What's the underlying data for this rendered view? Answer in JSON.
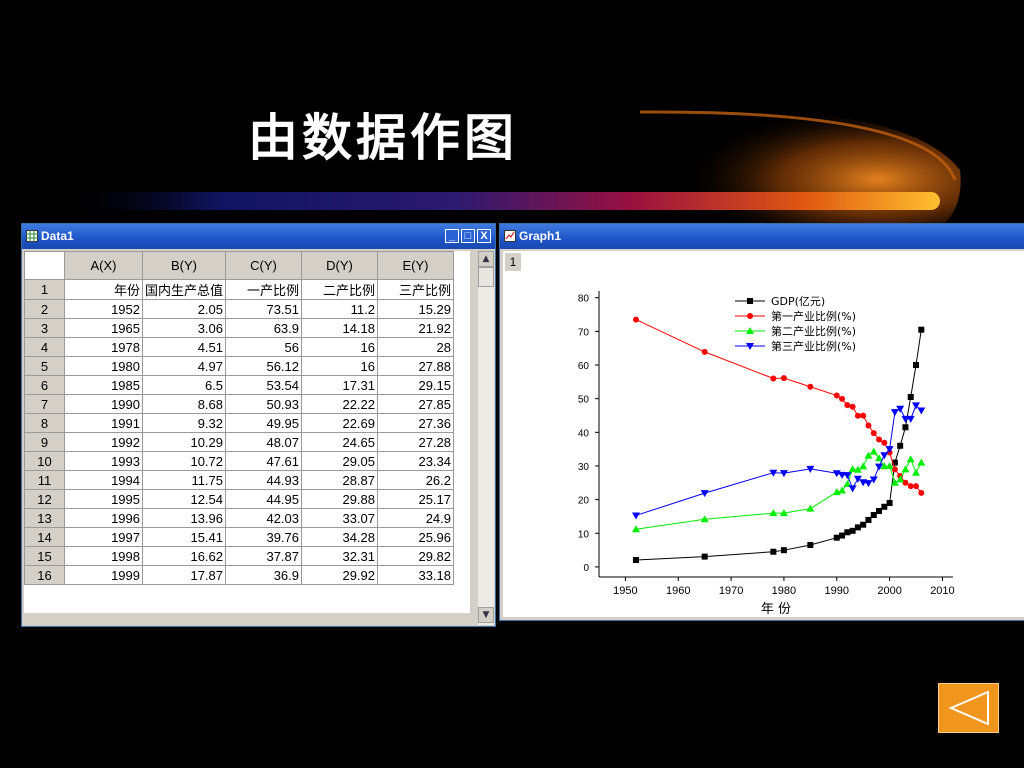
{
  "slide": {
    "title": "由数据作图",
    "accent": "#f0a020"
  },
  "data_window": {
    "title": "Data1",
    "controls": [
      "_",
      "□",
      "X"
    ],
    "columns": [
      "A(X)",
      "B(Y)",
      "C(Y)",
      "D(Y)",
      "E(Y)"
    ],
    "rows": [
      {
        "n": "1",
        "cells": [
          "年份",
          "国内生产总值",
          "一产比例",
          "二产比例",
          "三产比例"
        ]
      },
      {
        "n": "2",
        "cells": [
          "1952",
          "2.05",
          "73.51",
          "11.2",
          "15.29"
        ]
      },
      {
        "n": "3",
        "cells": [
          "1965",
          "3.06",
          "63.9",
          "14.18",
          "21.92"
        ]
      },
      {
        "n": "4",
        "cells": [
          "1978",
          "4.51",
          "56",
          "16",
          "28"
        ]
      },
      {
        "n": "5",
        "cells": [
          "1980",
          "4.97",
          "56.12",
          "16",
          "27.88"
        ]
      },
      {
        "n": "6",
        "cells": [
          "1985",
          "6.5",
          "53.54",
          "17.31",
          "29.15"
        ]
      },
      {
        "n": "7",
        "cells": [
          "1990",
          "8.68",
          "50.93",
          "22.22",
          "27.85"
        ]
      },
      {
        "n": "8",
        "cells": [
          "1991",
          "9.32",
          "49.95",
          "22.69",
          "27.36"
        ]
      },
      {
        "n": "9",
        "cells": [
          "1992",
          "10.29",
          "48.07",
          "24.65",
          "27.28"
        ]
      },
      {
        "n": "10",
        "cells": [
          "1993",
          "10.72",
          "47.61",
          "29.05",
          "23.34"
        ]
      },
      {
        "n": "11",
        "cells": [
          "1994",
          "11.75",
          "44.93",
          "28.87",
          "26.2"
        ]
      },
      {
        "n": "12",
        "cells": [
          "1995",
          "12.54",
          "44.95",
          "29.88",
          "25.17"
        ]
      },
      {
        "n": "13",
        "cells": [
          "1996",
          "13.96",
          "42.03",
          "33.07",
          "24.9"
        ]
      },
      {
        "n": "14",
        "cells": [
          "1997",
          "15.41",
          "39.76",
          "34.28",
          "25.96"
        ]
      },
      {
        "n": "15",
        "cells": [
          "1998",
          "16.62",
          "37.87",
          "32.31",
          "29.82"
        ]
      },
      {
        "n": "16",
        "cells": [
          "1999",
          "17.87",
          "36.9",
          "29.92",
          "33.18"
        ]
      }
    ]
  },
  "graph_window": {
    "title": "Graph1",
    "layer_label": "1"
  },
  "chart_data": {
    "type": "line",
    "xlabel": "年 份",
    "ylabel": "",
    "xlim": [
      1945,
      2012
    ],
    "ylim": [
      -3,
      82
    ],
    "xticks": [
      1950,
      1960,
      1970,
      1980,
      1990,
      2000,
      2010
    ],
    "yticks": [
      0,
      10,
      20,
      30,
      40,
      50,
      60,
      70,
      80
    ],
    "grid": false,
    "legend_position": "top-right",
    "series": [
      {
        "name": "GDP(亿元)",
        "color": "#000000",
        "marker": "square",
        "x": [
          1952,
          1965,
          1978,
          1980,
          1985,
          1990,
          1991,
          1992,
          1993,
          1994,
          1995,
          1996,
          1997,
          1998,
          1999,
          2000,
          2001,
          2002,
          2003,
          2004,
          2005,
          2006
        ],
        "y": [
          2.05,
          3.06,
          4.51,
          4.97,
          6.5,
          8.68,
          9.32,
          10.29,
          10.72,
          11.75,
          12.54,
          13.96,
          15.41,
          16.62,
          17.87,
          19,
          31,
          36,
          41.5,
          50.5,
          60,
          70.5
        ]
      },
      {
        "name": "第一产业比例(%)",
        "color": "#ff0000",
        "marker": "circle",
        "x": [
          1952,
          1965,
          1978,
          1980,
          1985,
          1990,
          1991,
          1992,
          1993,
          1994,
          1995,
          1996,
          1997,
          1998,
          1999,
          2000,
          2001,
          2002,
          2003,
          2004,
          2005,
          2006
        ],
        "y": [
          73.51,
          63.9,
          56,
          56.12,
          53.54,
          50.93,
          49.95,
          48.07,
          47.61,
          44.93,
          44.95,
          42.03,
          39.76,
          37.87,
          36.9,
          34,
          29,
          27,
          25,
          24,
          24,
          22
        ]
      },
      {
        "name": "第二产业比例(%)",
        "color": "#00ee00",
        "marker": "triangle-up",
        "x": [
          1952,
          1965,
          1978,
          1980,
          1985,
          1990,
          1991,
          1992,
          1993,
          1994,
          1995,
          1996,
          1997,
          1998,
          1999,
          2000,
          2001,
          2002,
          2003,
          2004,
          2005,
          2006
        ],
        "y": [
          11.2,
          14.18,
          16,
          16,
          17.31,
          22.22,
          22.69,
          24.65,
          29.05,
          28.87,
          29.88,
          33.07,
          34.28,
          32.31,
          29.92,
          30,
          25,
          26,
          29,
          32,
          28,
          31
        ]
      },
      {
        "name": "第三产业比例(%)",
        "color": "#0000ff",
        "marker": "triangle-down",
        "x": [
          1952,
          1965,
          1978,
          1980,
          1985,
          1990,
          1991,
          1992,
          1993,
          1994,
          1995,
          1996,
          1997,
          1998,
          1999,
          2000,
          2001,
          2002,
          2003,
          2004,
          2005,
          2006
        ],
        "y": [
          15.29,
          21.92,
          28,
          27.88,
          29.15,
          27.85,
          27.36,
          27.28,
          23.34,
          26.2,
          25.17,
          24.9,
          25.96,
          29.82,
          33.18,
          35,
          46,
          47,
          44,
          44,
          48,
          46.5
        ]
      }
    ]
  },
  "nav": {
    "back_color": "#f0961e"
  }
}
